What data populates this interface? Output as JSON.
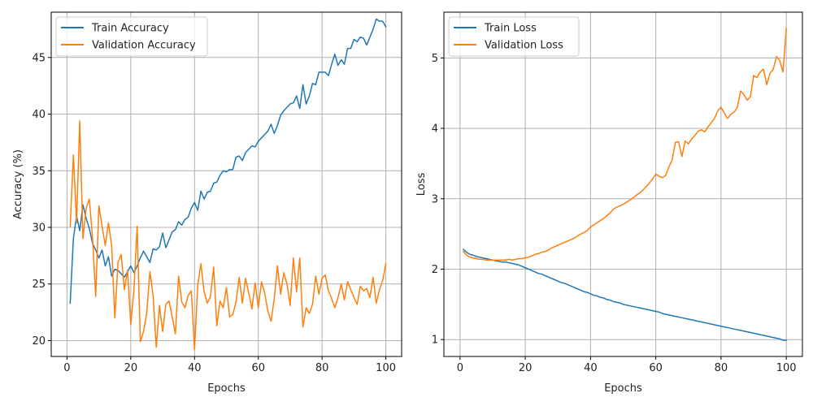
{
  "chart_data": [
    {
      "type": "line",
      "title": "",
      "xlabel": "Epochs",
      "ylabel": "Accuracy (%)",
      "xlim": [
        -4.95,
        104.95
      ],
      "ylim": [
        18.6,
        49.0
      ],
      "xticks": [
        0,
        20,
        40,
        60,
        80,
        100
      ],
      "yticks": [
        20,
        25,
        30,
        35,
        40,
        45
      ],
      "grid": true,
      "legend": "top-left",
      "x_start": 1,
      "x_step": 1,
      "series": [
        {
          "name": "Train Accuracy",
          "color": "#1f77b4",
          "values": [
            23.3,
            29.0,
            31.0,
            29.7,
            32.0,
            30.8,
            29.9,
            28.6,
            28.0,
            27.3,
            28.0,
            26.6,
            27.4,
            25.7,
            26.3,
            26.2,
            25.9,
            25.6,
            26.1,
            26.6,
            26.0,
            26.6,
            27.3,
            27.9,
            27.4,
            26.9,
            28.1,
            28.0,
            28.3,
            29.5,
            28.2,
            28.9,
            29.6,
            29.8,
            30.5,
            30.2,
            30.7,
            30.9,
            31.7,
            32.2,
            31.5,
            33.2,
            32.5,
            33.1,
            33.2,
            33.9,
            34.0,
            34.6,
            35.0,
            34.9,
            35.1,
            35.1,
            36.2,
            36.3,
            35.9,
            36.6,
            36.9,
            37.2,
            37.1,
            37.6,
            37.9,
            38.2,
            38.5,
            39.1,
            38.3,
            39.0,
            39.9,
            40.3,
            40.6,
            40.9,
            41.0,
            41.6,
            40.5,
            42.6,
            40.9,
            41.6,
            42.7,
            42.6,
            43.7,
            43.7,
            43.7,
            43.4,
            44.4,
            45.3,
            44.3,
            44.8,
            44.4,
            45.8,
            45.8,
            46.6,
            46.4,
            46.8,
            46.7,
            46.1,
            46.8,
            47.5,
            48.4,
            48.2,
            48.2,
            47.7
          ]
        },
        {
          "name": "Validation Accuracy",
          "color": "#ff7f0e",
          "values": [
            30.1,
            36.4,
            30.4,
            39.4,
            29.0,
            31.7,
            32.5,
            29.1,
            23.9,
            31.9,
            30.1,
            28.4,
            30.4,
            28.4,
            22.0,
            26.9,
            27.6,
            24.5,
            26.2,
            21.4,
            24.5,
            30.1,
            19.9,
            20.8,
            22.4,
            26.1,
            24.0,
            19.4,
            23.1,
            20.8,
            23.2,
            23.5,
            22.1,
            20.6,
            25.7,
            23.4,
            22.9,
            24.0,
            24.4,
            19.2,
            24.9,
            26.8,
            24.3,
            23.3,
            23.9,
            26.5,
            21.3,
            23.5,
            22.9,
            24.7,
            22.1,
            22.3,
            23.4,
            25.6,
            23.3,
            25.5,
            24.2,
            22.8,
            25.1,
            22.9,
            25.2,
            24.2,
            22.6,
            21.7,
            23.7,
            26.6,
            24.1,
            26.0,
            25.0,
            23.1,
            27.3,
            24.3,
            27.3,
            21.2,
            22.9,
            22.4,
            23.2,
            25.7,
            24.1,
            25.5,
            25.8,
            24.4,
            23.7,
            22.9,
            23.8,
            25.0,
            23.6,
            25.2,
            24.5,
            23.8,
            23.2,
            24.8,
            24.4,
            24.6,
            23.8,
            25.6,
            23.3,
            24.5,
            25.3,
            26.8
          ]
        }
      ]
    },
    {
      "type": "line",
      "title": "",
      "xlabel": "Epochs",
      "ylabel": "Loss",
      "xlim": [
        -4.95,
        104.95
      ],
      "ylim": [
        0.76,
        5.65
      ],
      "xticks": [
        0,
        20,
        40,
        60,
        80,
        100
      ],
      "yticks": [
        1,
        2,
        3,
        4,
        5
      ],
      "grid": true,
      "legend": "top-left",
      "x_start": 1,
      "x_step": 1,
      "series": [
        {
          "name": "Train Loss",
          "color": "#1f77b4",
          "values": [
            2.28,
            2.24,
            2.21,
            2.2,
            2.18,
            2.17,
            2.16,
            2.15,
            2.14,
            2.13,
            2.12,
            2.11,
            2.1,
            2.1,
            2.09,
            2.08,
            2.07,
            2.06,
            2.04,
            2.02,
            2.0,
            1.98,
            1.96,
            1.94,
            1.93,
            1.91,
            1.89,
            1.87,
            1.85,
            1.83,
            1.81,
            1.8,
            1.78,
            1.76,
            1.74,
            1.72,
            1.7,
            1.68,
            1.67,
            1.65,
            1.63,
            1.62,
            1.6,
            1.59,
            1.57,
            1.56,
            1.54,
            1.53,
            1.52,
            1.5,
            1.49,
            1.48,
            1.47,
            1.46,
            1.45,
            1.44,
            1.43,
            1.42,
            1.41,
            1.4,
            1.39,
            1.37,
            1.36,
            1.35,
            1.34,
            1.33,
            1.32,
            1.31,
            1.3,
            1.29,
            1.28,
            1.27,
            1.26,
            1.25,
            1.24,
            1.23,
            1.22,
            1.21,
            1.2,
            1.19,
            1.18,
            1.17,
            1.16,
            1.15,
            1.14,
            1.13,
            1.12,
            1.11,
            1.1,
            1.09,
            1.08,
            1.07,
            1.06,
            1.05,
            1.04,
            1.03,
            1.02,
            1.01,
            0.99,
            0.99
          ]
        },
        {
          "name": "Validation Loss",
          "color": "#ff7f0e",
          "values": [
            2.25,
            2.2,
            2.17,
            2.16,
            2.15,
            2.14,
            2.14,
            2.13,
            2.13,
            2.13,
            2.13,
            2.13,
            2.13,
            2.13,
            2.14,
            2.13,
            2.14,
            2.15,
            2.15,
            2.16,
            2.17,
            2.19,
            2.21,
            2.22,
            2.24,
            2.25,
            2.27,
            2.3,
            2.32,
            2.34,
            2.36,
            2.38,
            2.4,
            2.42,
            2.44,
            2.47,
            2.5,
            2.52,
            2.55,
            2.6,
            2.63,
            2.66,
            2.69,
            2.72,
            2.76,
            2.8,
            2.85,
            2.88,
            2.9,
            2.92,
            2.95,
            2.98,
            3.01,
            3.05,
            3.08,
            3.12,
            3.17,
            3.22,
            3.28,
            3.35,
            3.32,
            3.3,
            3.33,
            3.45,
            3.55,
            3.8,
            3.81,
            3.6,
            3.82,
            3.78,
            3.85,
            3.9,
            3.96,
            3.98,
            3.95,
            4.02,
            4.08,
            4.14,
            4.25,
            4.3,
            4.22,
            4.14,
            4.2,
            4.23,
            4.3,
            4.53,
            4.48,
            4.4,
            4.45,
            4.75,
            4.72,
            4.8,
            4.84,
            4.62,
            4.78,
            4.84,
            5.02,
            4.96,
            4.8,
            5.42
          ]
        }
      ]
    }
  ]
}
